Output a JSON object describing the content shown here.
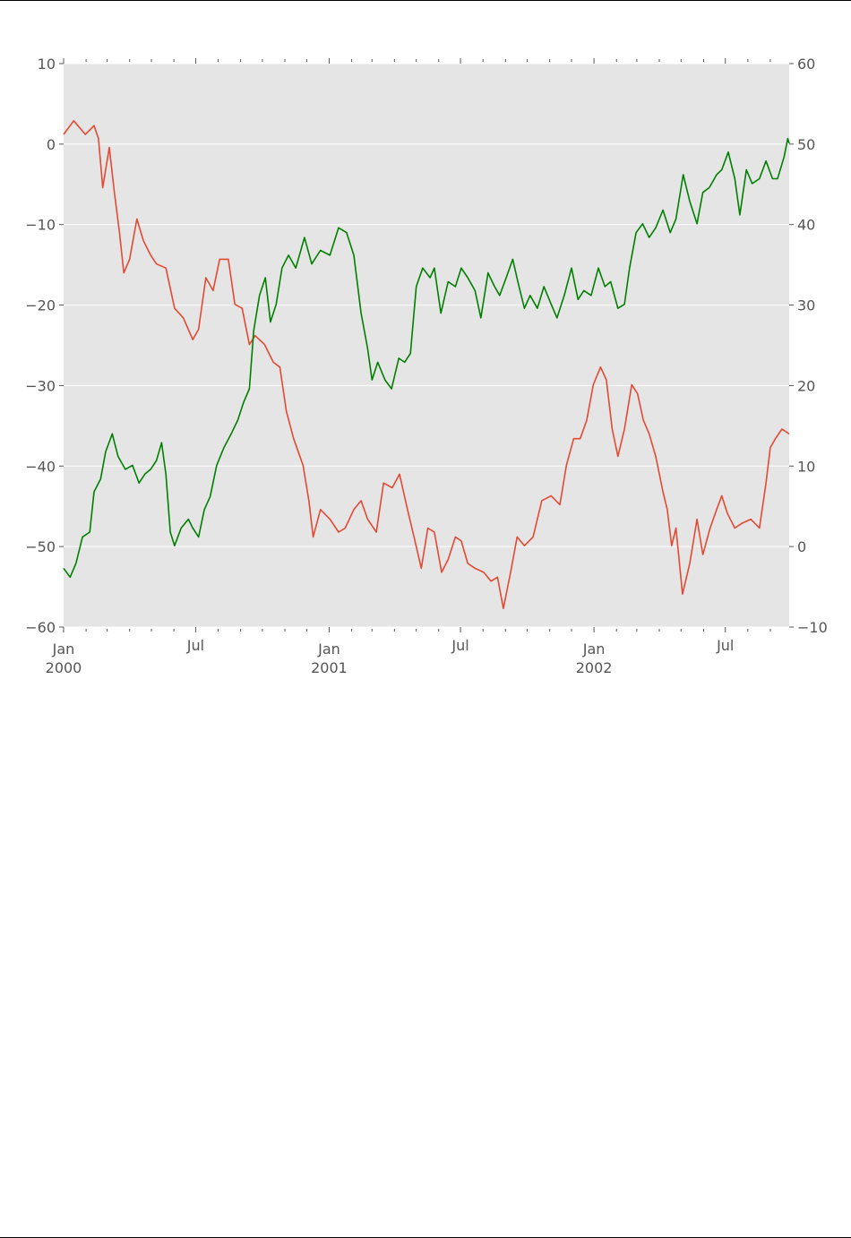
{
  "chart_data": {
    "type": "line",
    "title": "",
    "xlabel": "",
    "ylabel": "",
    "x_unit": "days since 2000-01-01",
    "xlim": [
      0,
      1000
    ],
    "ylim_left": [
      -60,
      10
    ],
    "ylim_right": [
      -10,
      60
    ],
    "grid": true,
    "background": "#E5E5E5",
    "x_ticks": [
      {
        "day": 0,
        "label": "Jan",
        "sublabel": "2000"
      },
      {
        "day": 182,
        "label": "Jul",
        "sublabel": ""
      },
      {
        "day": 366,
        "label": "Jan",
        "sublabel": "2001"
      },
      {
        "day": 547,
        "label": "Jul",
        "sublabel": ""
      },
      {
        "day": 731,
        "label": "Jan",
        "sublabel": "2002"
      },
      {
        "day": 912,
        "label": "Jul",
        "sublabel": ""
      }
    ],
    "minor_tick_days": [
      31,
      60,
      91,
      121,
      152,
      213,
      244,
      274,
      305,
      335,
      397,
      425,
      456,
      486,
      517,
      578,
      609,
      639,
      670,
      700,
      762,
      790,
      821,
      851,
      882,
      943,
      974
    ],
    "y_left_ticks": [
      "10",
      "0",
      "−10",
      "−20",
      "−30",
      "−40",
      "−50",
      "−60"
    ],
    "y_right_ticks": [
      "60",
      "50",
      "40",
      "30",
      "20",
      "10",
      "0",
      "−10"
    ],
    "series": [
      {
        "name": "series-left",
        "axis": "left",
        "color": "#E24A33",
        "x": [
          0,
          14,
          30,
          42,
          48,
          54,
          63,
          70,
          77,
          83,
          91,
          101,
          110,
          120,
          128,
          141,
          153,
          165,
          178,
          186,
          196,
          206,
          215,
          227,
          236,
          246,
          256,
          264,
          277,
          289,
          298,
          307,
          317,
          330,
          338,
          344,
          354,
          367,
          379,
          388,
          400,
          410,
          419,
          431,
          441,
          453,
          463,
          474,
          483,
          493,
          502,
          511,
          521,
          530,
          540,
          548,
          557,
          567,
          579,
          589,
          598,
          606,
          616,
          625,
          635,
          647,
          659,
          672,
          684,
          693,
          703,
          712,
          721,
          730,
          740,
          748,
          756,
          764,
          773,
          783,
          791,
          799,
          807,
          816,
          826,
          832,
          838,
          844,
          853,
          863,
          873,
          881,
          891,
          900,
          907,
          915,
          925,
          935,
          947,
          959,
          968,
          974,
          981,
          990,
          1000
        ],
        "y": [
          1.2,
          2.9,
          1.2,
          2.3,
          0.7,
          -5.4,
          -0.4,
          -6,
          -11,
          -16,
          -14.3,
          -9.3,
          -12,
          -13.8,
          -14.9,
          -15.4,
          -20.4,
          -21.6,
          -24.3,
          -23,
          -16.6,
          -18.2,
          -14.3,
          -14.3,
          -19.9,
          -20.4,
          -24.9,
          -23.8,
          -24.9,
          -27.1,
          -27.7,
          -33.2,
          -36.6,
          -39.9,
          -44.3,
          -48.8,
          -45.4,
          -46.6,
          -48.2,
          -47.7,
          -45.4,
          -44.3,
          -46.6,
          -48.2,
          -42.1,
          -42.7,
          -41,
          -45.4,
          -48.8,
          -52.7,
          -47.7,
          -48.2,
          -53.2,
          -51.6,
          -48.8,
          -49.3,
          -52.1,
          -52.7,
          -53.2,
          -54.3,
          -53.8,
          -57.7,
          -53.2,
          -48.8,
          -49.9,
          -48.8,
          -44.3,
          -43.7,
          -44.8,
          -39.9,
          -36.6,
          -36.6,
          -34.3,
          -29.9,
          -27.7,
          -29.3,
          -35.4,
          -38.8,
          -35.4,
          -29.9,
          -31,
          -34.3,
          -36,
          -38.8,
          -43.2,
          -45.4,
          -49.9,
          -47.7,
          -55.9,
          -52.1,
          -46.6,
          -51,
          -47.7,
          -45.4,
          -43.7,
          -45.9,
          -47.7,
          -47.1,
          -46.6,
          -47.7,
          -42.1,
          -37.7,
          -36.6,
          -35.4,
          -36
        ]
      },
      {
        "name": "series-right",
        "axis": "right",
        "color": "#008000",
        "x": [
          0,
          9,
          17,
          26,
          36,
          42,
          51,
          58,
          67,
          75,
          85,
          95,
          104,
          112,
          120,
          128,
          135,
          141,
          147,
          153,
          162,
          172,
          178,
          186,
          194,
          202,
          211,
          221,
          231,
          240,
          248,
          256,
          262,
          270,
          278,
          285,
          293,
          301,
          310,
          320,
          332,
          342,
          354,
          367,
          379,
          390,
          400,
          410,
          419,
          425,
          433,
          443,
          452,
          462,
          470,
          478,
          486,
          495,
          505,
          511,
          520,
          530,
          540,
          548,
          557,
          567,
          575,
          585,
          594,
          601,
          610,
          619,
          626,
          635,
          643,
          653,
          662,
          672,
          680,
          690,
          700,
          709,
          717,
          727,
          737,
          746,
          754,
          764,
          773,
          780,
          789,
          798,
          807,
          816,
          826,
          836,
          844,
          854,
          863,
          873,
          881,
          890,
          900,
          907,
          916,
          925,
          932,
          941,
          949,
          959,
          968,
          977,
          984,
          993,
          998,
          1000
        ],
        "y": [
          -2.7,
          -3.8,
          -2.1,
          1.2,
          1.8,
          6.8,
          8.4,
          11.8,
          14,
          11.2,
          9.6,
          10.1,
          7.9,
          9,
          9.6,
          10.7,
          12.9,
          9,
          1.8,
          0.1,
          2.3,
          3.4,
          2.3,
          1.2,
          4.6,
          6.2,
          10.1,
          12.3,
          14,
          15.7,
          17.9,
          19.6,
          26.8,
          31.2,
          33.4,
          27.9,
          30.1,
          34.6,
          36.2,
          34.6,
          38.4,
          35.1,
          36.8,
          36.2,
          39.6,
          39,
          36.2,
          29,
          24.6,
          20.7,
          22.9,
          20.7,
          19.6,
          23.4,
          22.9,
          24,
          32.3,
          34.6,
          33.4,
          34.6,
          29,
          32.9,
          32.3,
          34.6,
          33.4,
          31.8,
          28.4,
          34,
          32.3,
          31.2,
          33.4,
          35.7,
          32.9,
          29.6,
          31.2,
          29.6,
          32.3,
          30.1,
          28.4,
          31.2,
          34.6,
          30.7,
          31.8,
          31.2,
          34.6,
          32.3,
          32.9,
          29.6,
          30.1,
          34.6,
          39,
          40.1,
          38.4,
          39.6,
          41.8,
          39,
          40.7,
          46.2,
          42.9,
          40.1,
          44,
          44.6,
          46.2,
          46.8,
          49,
          45.7,
          41.2,
          46.8,
          45.1,
          45.7,
          47.9,
          45.7,
          45.7,
          48.4,
          50.7,
          50.1
        ]
      }
    ]
  }
}
